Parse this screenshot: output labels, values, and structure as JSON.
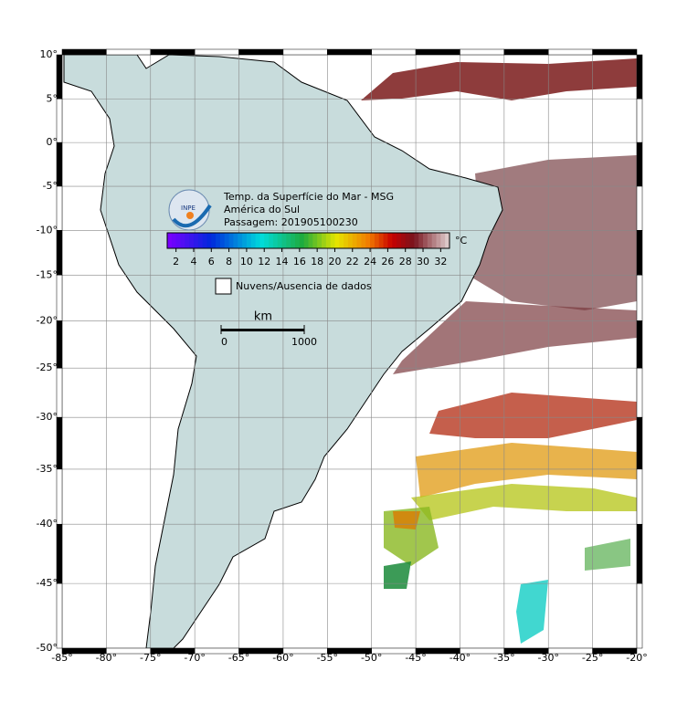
{
  "map": {
    "xlim": [
      -85,
      -20
    ],
    "ylim": [
      -50,
      10
    ],
    "xticks": [
      {
        "value": -85,
        "label": "-85°"
      },
      {
        "value": -80,
        "label": "-80°"
      },
      {
        "value": -75,
        "label": "-75°"
      },
      {
        "value": -70,
        "label": "-70°"
      },
      {
        "value": -65,
        "label": "-65°"
      },
      {
        "value": -60,
        "label": "-60°"
      },
      {
        "value": -55,
        "label": "-55°"
      },
      {
        "value": -50,
        "label": "-50°"
      },
      {
        "value": -45,
        "label": "-45°"
      },
      {
        "value": -40,
        "label": "-40°"
      },
      {
        "value": -35,
        "label": "-35°"
      },
      {
        "value": -30,
        "label": "-30°"
      },
      {
        "value": -25,
        "label": "-25°"
      },
      {
        "value": -20,
        "label": "-20°"
      }
    ],
    "yticks": [
      {
        "value": 10,
        "label": "10°"
      },
      {
        "value": 5,
        "label": "5°"
      },
      {
        "value": 0,
        "label": "0°"
      },
      {
        "value": -5,
        "label": "-5°"
      },
      {
        "value": -10,
        "label": "-10°"
      },
      {
        "value": -15,
        "label": "-15°"
      },
      {
        "value": -20,
        "label": "-20°"
      },
      {
        "value": -25,
        "label": "-25°"
      },
      {
        "value": -30,
        "label": "-30°"
      },
      {
        "value": -35,
        "label": "-35°"
      },
      {
        "value": -40,
        "label": "-40°"
      },
      {
        "value": -45,
        "label": "-45°"
      },
      {
        "value": -50,
        "label": "-50°"
      }
    ]
  },
  "legend": {
    "title": [
      "Temp. da Superfície do Mar - MSG",
      "América do Sul",
      "Passagem: 201905100230"
    ],
    "logo": "INPE",
    "colorbar": {
      "unit": "°C",
      "clim": [
        1,
        33
      ],
      "ticks": [
        2,
        4,
        6,
        8,
        10,
        12,
        14,
        16,
        18,
        20,
        22,
        24,
        26,
        28,
        30,
        32
      ]
    },
    "cloud_label": "Nuvens/Ausencia de dados",
    "scale": {
      "unit": "km",
      "ticks": [
        0,
        1000
      ]
    }
  }
}
